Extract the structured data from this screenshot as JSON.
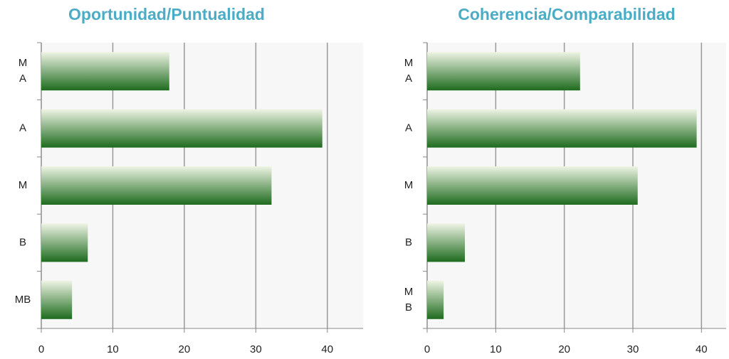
{
  "chart_data": [
    {
      "type": "barh",
      "title": "Oportunidad/Puntualidad",
      "categories": [
        "MA",
        "A",
        "M",
        "B",
        "MB"
      ],
      "values": [
        17.9,
        39.3,
        32.2,
        6.5,
        4.3
      ],
      "color": "#1e6b1e",
      "xlim": [
        0,
        45
      ],
      "xticks": [
        0,
        10,
        20,
        30,
        40
      ],
      "grid": true
    },
    {
      "type": "barh",
      "title": "Coherencia/Comparabilidad",
      "categories": [
        "MA",
        "A",
        "M",
        "B",
        "MB"
      ],
      "values": [
        22.3,
        39.3,
        30.7,
        5.5,
        2.4
      ],
      "color": "#1e6b1e",
      "xlim": [
        0,
        43.6
      ],
      "xticks": [
        0,
        10,
        20,
        30,
        40
      ],
      "grid": true
    }
  ]
}
